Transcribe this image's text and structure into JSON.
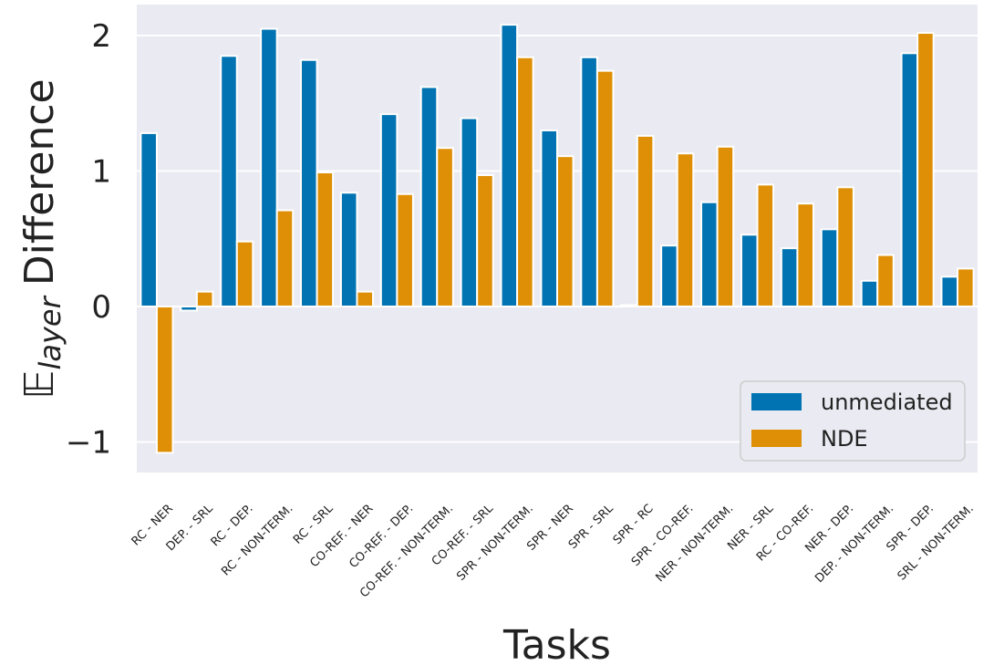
{
  "chart_data": {
    "type": "bar",
    "xlabel": "Tasks",
    "ylabel_prefix": "𝔼",
    "ylabel_sub": "layer",
    "ylabel_suffix": "Difference",
    "ylim": [
      -1.22,
      2.2
    ],
    "yticks": [
      -1,
      0,
      1,
      2
    ],
    "ytick_labels": [
      "−1",
      "0",
      "1",
      "2"
    ],
    "grid": true,
    "legend_position": "lower right",
    "categories": [
      "RC - NER",
      "DEP. - SRL",
      "RC - DEP.",
      "RC - NON-TERM.",
      "RC - SRL",
      "CO-REF. - NER",
      "CO-REF. - DEP.",
      "CO-REF. - NON-TERM.",
      "CO-REF. - SRL",
      "SPR - NON-TERM.",
      "SPR - NER",
      "SPR - SRL",
      "SPR - RC",
      "SPR - CO-REF.",
      "NER - NON-TERM.",
      "NER - SRL",
      "RC - CO-REF.",
      "NER - DEP.",
      "DEP. - NON-TERM.",
      "SPR - DEP.",
      "SRL - NON-TERM."
    ],
    "series": [
      {
        "name": "unmediated",
        "color": "#0173b2",
        "values": [
          1.28,
          -0.03,
          1.85,
          2.05,
          1.82,
          0.84,
          1.42,
          1.62,
          1.39,
          2.08,
          1.3,
          1.84,
          0.01,
          0.45,
          0.77,
          0.53,
          0.43,
          0.57,
          0.19,
          1.87,
          0.22
        ]
      },
      {
        "name": "NDE",
        "color": "#de8f05",
        "values": [
          -1.08,
          0.11,
          0.48,
          0.71,
          0.99,
          0.11,
          0.83,
          1.17,
          0.97,
          1.84,
          1.11,
          1.74,
          1.26,
          1.13,
          1.18,
          0.9,
          0.76,
          0.88,
          0.38,
          2.02,
          0.28
        ]
      }
    ]
  }
}
